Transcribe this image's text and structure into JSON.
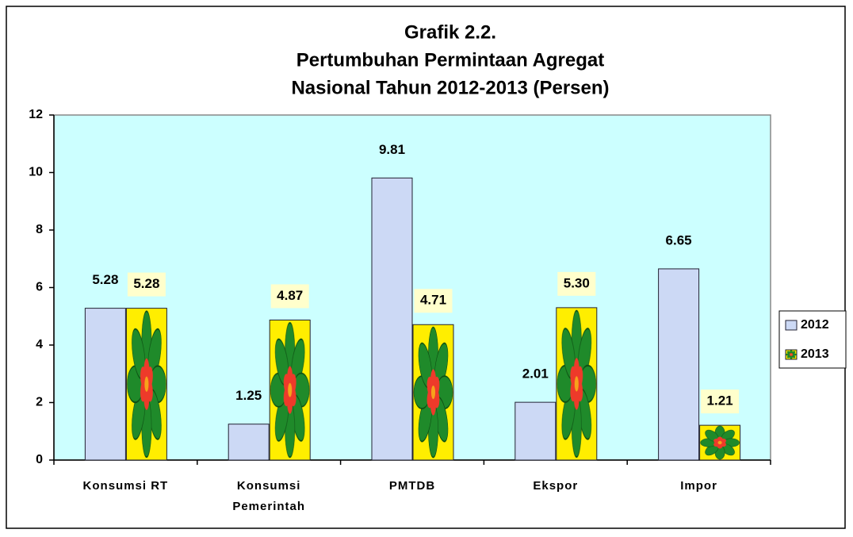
{
  "chart_data": {
    "type": "bar",
    "title": "Grafik 2.2.",
    "subtitle": [
      "Pertumbuhan Permintaan Agregat",
      "Nasional Tahun 2012-2013 (Persen)"
    ],
    "categories": [
      "Konsumsi RT",
      "Konsumsi Pemerintah",
      "PMTDB",
      "Ekspor",
      "Impor"
    ],
    "series": [
      {
        "name": "2012",
        "color": "#ccd9f5",
        "values": [
          5.28,
          1.25,
          9.81,
          2.01,
          6.65
        ]
      },
      {
        "name": "2013",
        "color": "#ffee00",
        "values": [
          5.28,
          4.87,
          4.71,
          5.3,
          1.21
        ],
        "value_labels": [
          "5.28",
          "4.87",
          "4.71",
          "5.30",
          "1.21"
        ]
      }
    ],
    "ylim": [
      0,
      12
    ],
    "yticks": [
      0,
      2,
      4,
      6,
      8,
      10,
      12
    ],
    "grid": false,
    "legend": "right",
    "plot_background": "#ccffff"
  }
}
